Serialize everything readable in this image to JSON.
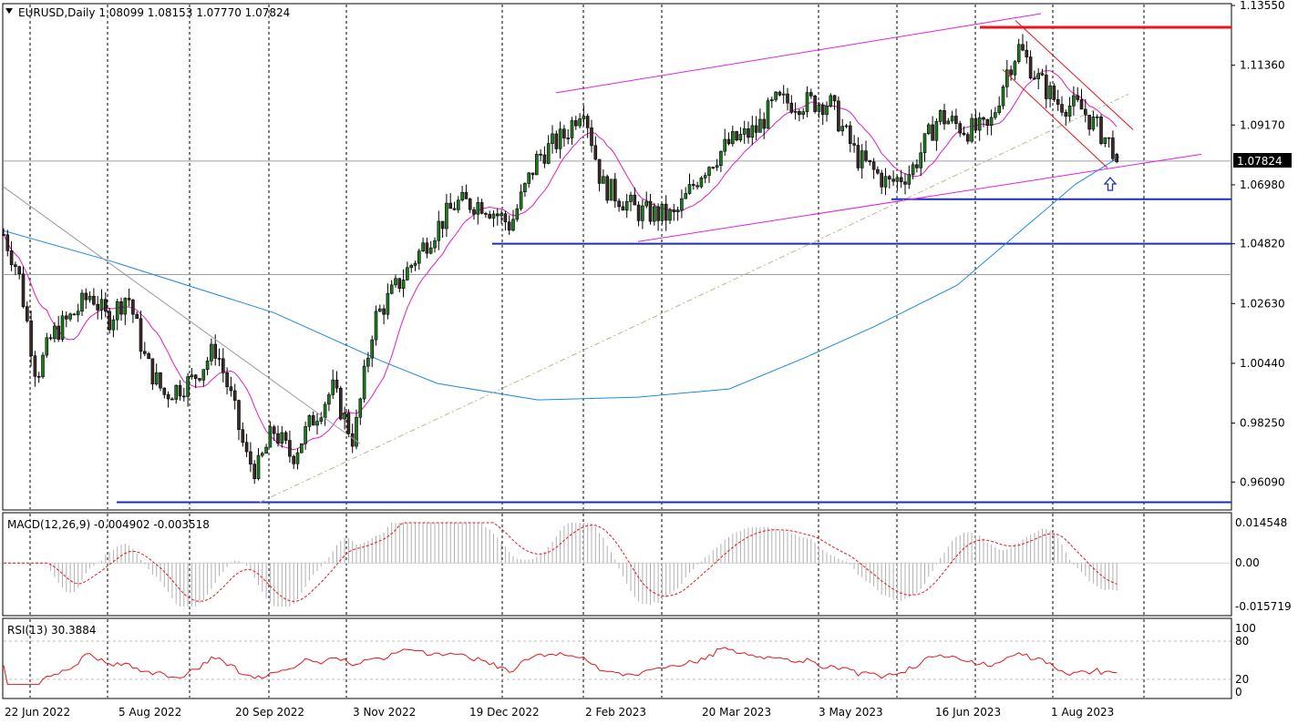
{
  "chart_data": [
    {
      "type": "candlestick",
      "symbol": "EURUSD",
      "timeframe": "Daily",
      "header": "EURUSD,Daily  1.08099 1.08153 1.07770 1.07824",
      "ohlc_last": {
        "open": 1.08099,
        "high": 1.08153,
        "low": 1.0777,
        "close": 1.07824
      },
      "current_price_label": "1.07824",
      "y_ticks": [
        "1.13550",
        "1.11360",
        "1.09170",
        "1.06980",
        "1.04820",
        "1.02630",
        "1.00440",
        "0.98250",
        "0.96090"
      ],
      "x_ticks": [
        "22 Jun 2022",
        "5 Aug 2022",
        "20 Sep 2022",
        "3 Nov 2022",
        "19 Dec 2022",
        "2 Feb 2023",
        "20 Mar 2023",
        "3 May 2023",
        "16 Jun 2023",
        "1 Aug 2023"
      ],
      "anchors": [
        {
          "x": 0,
          "y": 1.055
        },
        {
          "x": 20,
          "y": 1.038
        },
        {
          "x": 40,
          "y": 1.0
        },
        {
          "x": 58,
          "y": 1.015
        },
        {
          "x": 80,
          "y": 1.022
        },
        {
          "x": 100,
          "y": 1.03
        },
        {
          "x": 118,
          "y": 1.02
        },
        {
          "x": 140,
          "y": 1.03
        },
        {
          "x": 160,
          "y": 1.005
        },
        {
          "x": 180,
          "y": 0.993
        },
        {
          "x": 210,
          "y": 0.998
        },
        {
          "x": 237,
          "y": 1.01
        },
        {
          "x": 255,
          "y": 0.99
        },
        {
          "x": 270,
          "y": 0.97
        },
        {
          "x": 282,
          "y": 0.965
        },
        {
          "x": 300,
          "y": 0.98
        },
        {
          "x": 320,
          "y": 0.97
        },
        {
          "x": 345,
          "y": 0.985
        },
        {
          "x": 365,
          "y": 0.995
        },
        {
          "x": 388,
          "y": 0.976
        },
        {
          "x": 410,
          "y": 1.02
        },
        {
          "x": 440,
          "y": 1.035
        },
        {
          "x": 470,
          "y": 1.05
        },
        {
          "x": 500,
          "y": 1.063
        },
        {
          "x": 530,
          "y": 1.063
        },
        {
          "x": 560,
          "y": 1.055
        },
        {
          "x": 590,
          "y": 1.08
        },
        {
          "x": 620,
          "y": 1.088
        },
        {
          "x": 640,
          "y": 1.1
        },
        {
          "x": 660,
          "y": 1.07
        },
        {
          "x": 700,
          "y": 1.06
        },
        {
          "x": 740,
          "y": 1.058
        },
        {
          "x": 770,
          "y": 1.075
        },
        {
          "x": 800,
          "y": 1.085
        },
        {
          "x": 830,
          "y": 1.09
        },
        {
          "x": 850,
          "y": 1.1
        },
        {
          "x": 880,
          "y": 1.1
        },
        {
          "x": 910,
          "y": 1.1
        },
        {
          "x": 940,
          "y": 1.08
        },
        {
          "x": 975,
          "y": 1.07
        },
        {
          "x": 1000,
          "y": 1.075
        },
        {
          "x": 1030,
          "y": 1.095
        },
        {
          "x": 1060,
          "y": 1.09
        },
        {
          "x": 1085,
          "y": 1.09
        },
        {
          "x": 1105,
          "y": 1.112
        },
        {
          "x": 1118,
          "y": 1.12
        },
        {
          "x": 1140,
          "y": 1.108
        },
        {
          "x": 1160,
          "y": 1.1
        },
        {
          "x": 1185,
          "y": 1.098
        },
        {
          "x": 1205,
          "y": 1.09
        },
        {
          "x": 1222,
          "y": 1.083
        },
        {
          "x": 1228,
          "y": 1.078
        }
      ],
      "horizontal_levels": [
        {
          "price": 1.1275,
          "color": "#e8141c",
          "width": 3
        },
        {
          "price": 1.0645,
          "color": "#1a2dbf",
          "width": 2
        },
        {
          "price": 1.0482,
          "color": "#1a2dbf",
          "width": 2
        },
        {
          "price": 0.9535,
          "color": "#1a2dbf",
          "width": 2
        },
        {
          "price": 1.0785,
          "color": "#9aa0a6",
          "width": 1
        },
        {
          "price": 1.0369,
          "color": "#9aa0a6",
          "width": 1
        }
      ],
      "colors": {
        "bull": "#1f7a1f",
        "bear": "#3a2a28",
        "ma_fast": "#e020c0",
        "ma_slow": "#1e88e5",
        "trend": "#e020e0",
        "channel_down": "#e8141c"
      }
    },
    {
      "type": "histogram",
      "label": "MACD(12,26,9) -0.004902 -0.003518",
      "y_ticks": [
        "0.014548",
        "0.00",
        "-0.015719"
      ],
      "ylim": [
        -0.015719,
        0.014548
      ],
      "signal_color": "#e8141c",
      "hist_color": "#b0b0b0"
    },
    {
      "type": "line",
      "label": "RSI(13) 30.3884",
      "y_ticks": [
        "100",
        "80",
        "20",
        "0"
      ],
      "ylim": [
        0,
        100
      ],
      "last": 30.3884,
      "color": "#e8141c"
    }
  ]
}
